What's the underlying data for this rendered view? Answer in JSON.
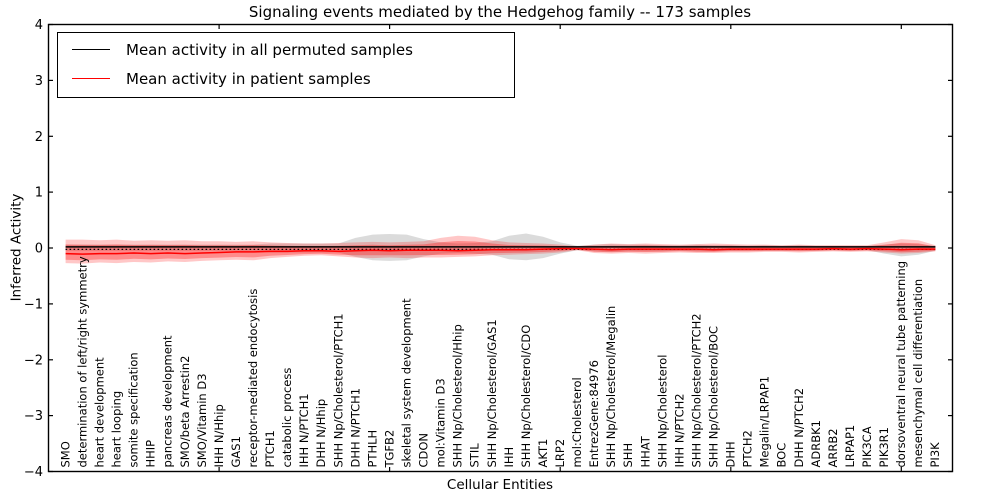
{
  "chart_data": {
    "type": "line",
    "title": "Signaling events mediated by the Hedgehog family -- 173 samples",
    "xlabel": "Cellular Entities",
    "ylabel": "Inferred Activity",
    "xlim": [
      0,
      53
    ],
    "ylim": [
      -4,
      4
    ],
    "yticks": [
      4,
      3,
      2,
      1,
      0,
      -1,
      -2,
      -3,
      -4
    ],
    "xticks": [
      10,
      20,
      30,
      40,
      50
    ],
    "grid": false,
    "legend_position": "upper left",
    "legend": [
      {
        "label": "Mean activity in all permuted samples",
        "color": "#000000"
      },
      {
        "label": "Mean activity in patient samples",
        "color": "#ff0000"
      }
    ],
    "colors": {
      "patient_line": "#ff0000",
      "permuted_line": "#000000",
      "patient_band": "rgba(255,0,0,0.22)",
      "patient_inner_band": "rgba(255,0,0,0.30)",
      "permuted_band": "rgba(0,0,0,0.14)"
    },
    "inner_band_scale": 0.65,
    "categories": [
      "SMO",
      "determination of left/right symmetry",
      "heart development",
      "heart looping",
      "somite specification",
      "HHIP",
      "pancreas development",
      "SMO/beta Arrestin2",
      "SMO/Vitamin D3",
      "IHH N/Hhip",
      "GAS1",
      "receptor-mediated endocytosis",
      "PTCH1",
      "catabolic process",
      "IHH N/PTCH1",
      "DHH N/Hhip",
      "SHH Np/Cholesterol/PTCH1",
      "DHH N/PTCH1",
      "PTHLH",
      "TGFB2",
      "skeletal system development",
      "CDON",
      "mol:Vitamin D3",
      "SHH Np/Cholesterol/Hhip",
      "STIL",
      "SHH Np/Cholesterol/GAS1",
      "IHH",
      "SHH Np/Cholesterol/CDO",
      "AKT1",
      "LRP2",
      "mol:Cholesterol",
      "EntrezGene:84976",
      "SHH Np/Cholesterol/Megalin",
      "SHH",
      "HHAT",
      "SHH Np/Cholesterol",
      "IHH N/PTCH2",
      "SHH Np/Cholesterol/PTCH2",
      "SHH Np/Cholesterol/BOC",
      "DHH",
      "PTCH2",
      "Megalin/LRPAP1",
      "BOC",
      "DHH N/PTCH2",
      "ADRBK1",
      "ARRB2",
      "LRPAP1",
      "PIK3CA",
      "PIK3R1",
      "dorsoventral neural tube patterning",
      "mesenchymal cell differentiation",
      "PI3K"
    ],
    "series": [
      {
        "name": "Mean activity in all permuted samples",
        "values": [
          0.02,
          0.02,
          0.02,
          0.02,
          0.02,
          0.02,
          0.02,
          0.02,
          0.02,
          0.02,
          0.02,
          0.02,
          0.02,
          0.02,
          0.02,
          0.02,
          0.02,
          0.02,
          0.02,
          0.02,
          0.02,
          0.02,
          0.02,
          0.02,
          0.02,
          0.02,
          0.02,
          0.02,
          0.02,
          0.02,
          0.02,
          0.02,
          0.02,
          0.02,
          0.02,
          0.02,
          0.02,
          0.02,
          0.02,
          0.02,
          0.02,
          0.02,
          0.02,
          0.02,
          0.02,
          0.02,
          0.02,
          0.02,
          0.02,
          0.02,
          0.02,
          0.02
        ]
      },
      {
        "name": "Mean activity in patient samples",
        "values": [
          -0.1,
          -0.11,
          -0.1,
          -0.1,
          -0.09,
          -0.1,
          -0.09,
          -0.1,
          -0.09,
          -0.08,
          -0.07,
          -0.07,
          -0.06,
          -0.06,
          -0.05,
          -0.05,
          -0.06,
          -0.05,
          -0.04,
          -0.05,
          -0.04,
          -0.04,
          -0.04,
          -0.05,
          -0.04,
          -0.03,
          -0.03,
          -0.03,
          -0.02,
          -0.01,
          -0.01,
          -0.02,
          -0.03,
          -0.02,
          -0.02,
          -0.02,
          -0.02,
          -0.02,
          -0.03,
          -0.02,
          -0.02,
          -0.02,
          -0.02,
          -0.02,
          -0.02,
          -0.01,
          -0.02,
          -0.01,
          -0.02,
          -0.03,
          -0.02,
          -0.02
        ]
      }
    ],
    "bands": [
      {
        "name": "permuted_range",
        "hi": [
          0.06,
          0.06,
          0.06,
          0.06,
          0.06,
          0.06,
          0.06,
          0.06,
          0.06,
          0.06,
          0.06,
          0.06,
          0.08,
          0.08,
          0.08,
          0.08,
          0.08,
          0.18,
          0.24,
          0.25,
          0.24,
          0.16,
          0.1,
          0.08,
          0.09,
          0.12,
          0.22,
          0.26,
          0.2,
          0.1,
          0.04,
          0.06,
          0.07,
          0.06,
          0.06,
          0.05,
          0.05,
          0.06,
          0.05,
          0.05,
          0.04,
          0.05,
          0.04,
          0.05,
          0.04,
          0.04,
          0.04,
          0.04,
          0.06,
          0.08,
          0.07,
          0.04
        ],
        "lo": [
          -0.05,
          -0.05,
          -0.05,
          -0.05,
          -0.05,
          -0.05,
          -0.05,
          -0.05,
          -0.05,
          -0.05,
          -0.05,
          -0.05,
          -0.08,
          -0.08,
          -0.08,
          -0.08,
          -0.08,
          -0.16,
          -0.22,
          -0.23,
          -0.22,
          -0.15,
          -0.1,
          -0.09,
          -0.1,
          -0.12,
          -0.2,
          -0.22,
          -0.18,
          -0.1,
          -0.04,
          -0.06,
          -0.07,
          -0.06,
          -0.06,
          -0.06,
          -0.05,
          -0.06,
          -0.06,
          -0.05,
          -0.05,
          -0.05,
          -0.05,
          -0.05,
          -0.05,
          -0.04,
          -0.05,
          -0.04,
          -0.1,
          -0.15,
          -0.12,
          -0.05
        ]
      },
      {
        "name": "patient_range",
        "hi": [
          0.15,
          0.15,
          0.14,
          0.15,
          0.13,
          0.14,
          0.13,
          0.14,
          0.12,
          0.12,
          0.11,
          0.12,
          0.1,
          0.09,
          0.08,
          0.08,
          0.09,
          0.1,
          0.11,
          0.1,
          0.11,
          0.12,
          0.18,
          0.22,
          0.2,
          0.14,
          0.1,
          0.09,
          0.08,
          0.06,
          0.03,
          0.06,
          0.08,
          0.07,
          0.08,
          0.07,
          0.06,
          0.07,
          0.08,
          0.07,
          0.06,
          0.06,
          0.05,
          0.06,
          0.05,
          0.05,
          0.05,
          0.05,
          0.1,
          0.16,
          0.14,
          0.05
        ],
        "lo": [
          -0.27,
          -0.28,
          -0.26,
          -0.27,
          -0.25,
          -0.26,
          -0.24,
          -0.25,
          -0.23,
          -0.22,
          -0.21,
          -0.22,
          -0.18,
          -0.16,
          -0.14,
          -0.13,
          -0.15,
          -0.17,
          -0.18,
          -0.17,
          -0.18,
          -0.17,
          -0.17,
          -0.16,
          -0.15,
          -0.13,
          -0.12,
          -0.11,
          -0.1,
          -0.08,
          -0.04,
          -0.09,
          -0.1,
          -0.09,
          -0.1,
          -0.09,
          -0.08,
          -0.09,
          -0.09,
          -0.08,
          -0.08,
          -0.07,
          -0.07,
          -0.08,
          -0.07,
          -0.06,
          -0.07,
          -0.06,
          -0.08,
          -0.1,
          -0.09,
          -0.06
        ]
      }
    ]
  }
}
